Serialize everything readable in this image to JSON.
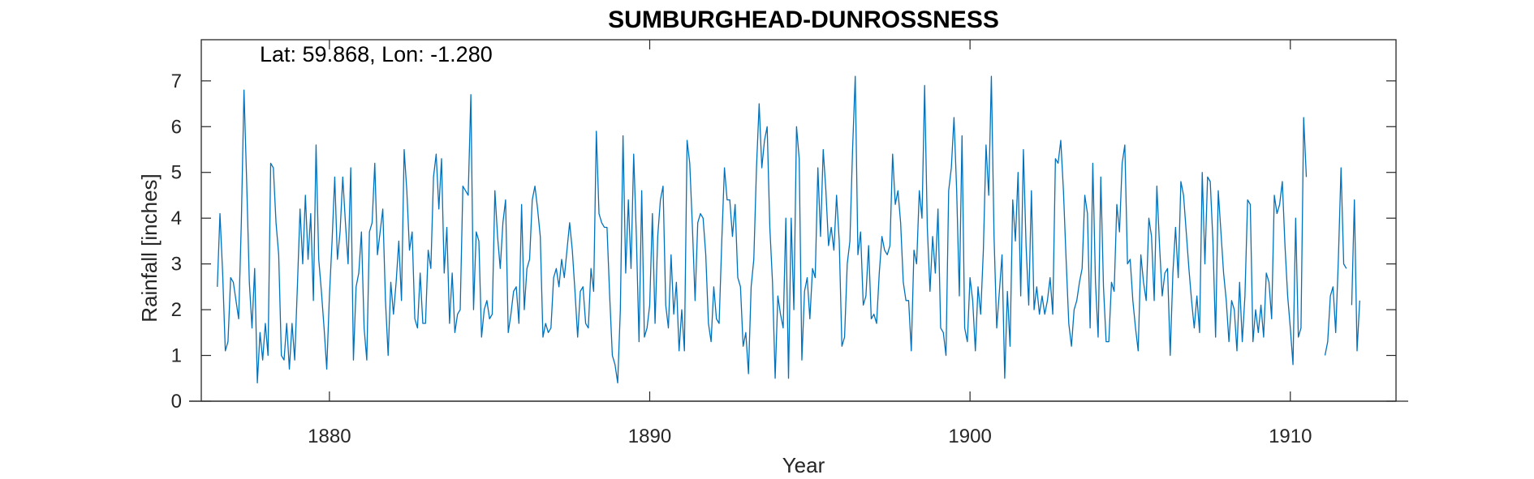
{
  "chart_data": {
    "type": "line",
    "title": "SUMBURGHEAD-DUNROSSNESS",
    "annotation": "Lat: 59.868, Lon: -1.280",
    "xlabel": "Year",
    "ylabel": "Rainfall [inches]",
    "xlim": [
      1876,
      1913.3
    ],
    "ylim": [
      0,
      7.9
    ],
    "xticks": [
      1880,
      1890,
      1900,
      1910
    ],
    "yticks": [
      0,
      1,
      2,
      3,
      4,
      5,
      6,
      7
    ],
    "grid": false,
    "line_color": "#0072BD",
    "series": [
      {
        "x_start": 1876.5,
        "x_step": 0.0833333,
        "values": [
          2.5,
          4.1,
          2.8,
          1.1,
          1.3,
          2.7,
          2.6,
          2.2,
          1.8,
          3.9,
          6.8,
          4.8,
          2.6,
          1.6,
          2.9,
          0.4,
          1.5,
          0.9,
          1.7,
          1.0,
          5.2,
          5.1,
          3.9,
          3.2,
          1.0,
          0.9,
          1.7,
          0.7,
          1.7,
          0.9,
          2.5,
          4.2,
          3.0,
          4.5,
          3.1,
          4.1,
          2.2,
          5.6,
          3.1,
          2.4,
          1.6,
          0.7,
          2.3,
          3.5,
          4.9,
          3.1,
          3.7,
          4.9,
          3.9,
          3.0,
          5.1,
          0.9,
          2.5,
          2.8,
          3.7,
          1.6,
          0.9,
          3.7,
          3.9,
          5.2,
          3.2,
          3.7,
          4.2,
          2.2,
          1.0,
          2.6,
          1.9,
          2.6,
          3.5,
          2.2,
          5.5,
          4.6,
          3.3,
          3.7,
          1.8,
          1.6,
          2.8,
          1.7,
          1.7,
          3.3,
          2.9,
          4.9,
          5.4,
          4.2,
          5.3,
          2.8,
          3.8,
          1.7,
          2.8,
          1.5,
          1.9,
          2.0,
          4.7,
          4.6,
          4.5,
          6.7,
          2.0,
          3.7,
          3.5,
          1.4,
          2.0,
          2.2,
          1.8,
          1.9,
          4.6,
          3.6,
          2.9,
          3.9,
          4.4,
          1.5,
          1.9,
          2.4,
          2.5,
          1.7,
          4.3,
          2.0,
          2.9,
          3.1,
          4.4,
          4.7,
          4.2,
          3.6,
          1.4,
          1.7,
          1.5,
          1.6,
          2.7,
          2.9,
          2.5,
          3.1,
          2.7,
          3.3,
          3.9,
          3.3,
          2.4,
          1.4,
          2.4,
          2.5,
          1.7,
          1.6,
          2.9,
          2.4,
          5.9,
          4.1,
          3.9,
          3.8,
          3.8,
          2.3,
          1.0,
          0.8,
          0.4,
          2.0,
          5.8,
          2.8,
          4.4,
          2.9,
          5.4,
          3.6,
          1.3,
          4.6,
          1.4,
          1.6,
          2.1,
          4.1,
          1.7,
          3.6,
          4.4,
          4.7,
          2.1,
          1.6,
          3.2,
          1.9,
          2.6,
          1.1,
          2.0,
          1.1,
          5.7,
          5.2,
          3.8,
          2.2,
          3.9,
          4.1,
          4.0,
          3.2,
          1.7,
          1.3,
          2.5,
          1.8,
          1.7,
          3.5,
          5.1,
          4.4,
          4.4,
          3.6,
          4.3,
          2.7,
          2.5,
          1.2,
          1.5,
          0.6,
          2.5,
          3.1,
          5.1,
          6.5,
          5.1,
          5.7,
          6.0,
          3.8,
          2.6,
          0.5,
          2.3,
          1.9,
          1.6,
          4.0,
          0.5,
          4.0,
          2.0,
          6.0,
          5.3,
          0.9,
          2.4,
          2.7,
          1.8,
          2.9,
          2.7,
          5.1,
          3.6,
          5.5,
          4.6,
          3.4,
          3.8,
          3.3,
          4.5,
          3.5,
          1.2,
          1.4,
          3.0,
          3.5,
          5.5,
          7.1,
          3.2,
          3.7,
          2.1,
          2.3,
          3.4,
          1.8,
          1.9,
          1.7,
          2.8,
          3.6,
          3.3,
          3.2,
          3.4,
          5.4,
          4.3,
          4.6,
          3.9,
          2.6,
          2.2,
          2.2,
          1.1,
          3.3,
          3.0,
          4.6,
          4.0,
          6.9,
          3.8,
          2.4,
          3.6,
          2.8,
          4.2,
          1.6,
          1.5,
          1.0,
          4.6,
          5.1,
          6.2,
          4.6,
          2.3,
          5.8,
          1.6,
          1.3,
          2.7,
          2.2,
          1.1,
          2.5,
          1.9,
          3.3,
          5.6,
          4.5,
          7.1,
          3.6,
          1.6,
          2.4,
          3.2,
          0.5,
          2.4,
          1.2,
          4.4,
          3.5,
          5.0,
          2.3,
          5.5,
          3.4,
          2.1,
          4.6,
          2.0,
          2.5,
          1.9,
          2.3,
          1.9,
          2.2,
          2.7,
          1.9,
          5.3,
          5.2,
          5.7,
          4.6,
          3.1,
          1.7,
          1.2,
          2.0,
          2.2,
          2.6,
          2.9,
          4.5,
          4.1,
          1.6,
          5.2,
          2.6,
          1.4,
          4.9,
          2.5,
          1.3,
          1.3,
          2.6,
          2.4,
          4.3,
          3.7,
          5.2,
          5.6,
          3.0,
          3.1,
          2.2,
          1.6,
          1.1,
          3.2,
          2.6,
          2.2,
          4.0,
          3.6,
          2.2,
          4.7,
          3.4,
          2.3,
          2.8,
          2.9,
          1.0,
          2.8,
          3.8,
          2.7,
          4.8,
          4.5,
          3.7,
          2.9,
          2.2,
          1.6,
          2.3,
          1.5,
          5.0,
          3.0,
          4.9,
          4.8,
          3.5,
          1.4,
          4.6,
          3.7,
          2.8,
          2.2,
          1.3,
          2.2,
          2.0,
          1.1,
          2.6,
          1.3,
          2.3,
          4.4,
          4.3,
          1.3,
          2.0,
          1.5,
          2.1,
          1.4,
          2.8,
          2.6,
          1.8,
          4.5,
          4.1,
          4.3,
          4.8,
          3.4,
          2.3,
          1.6,
          0.8,
          4.0,
          1.4,
          1.6,
          6.2,
          4.9,
          null,
          null,
          null,
          null,
          null,
          null,
          1.0,
          1.3,
          2.3,
          2.5,
          1.5,
          3.1,
          5.1,
          3.0,
          2.9,
          null,
          2.1,
          4.4,
          1.1,
          2.2
        ]
      }
    ]
  }
}
